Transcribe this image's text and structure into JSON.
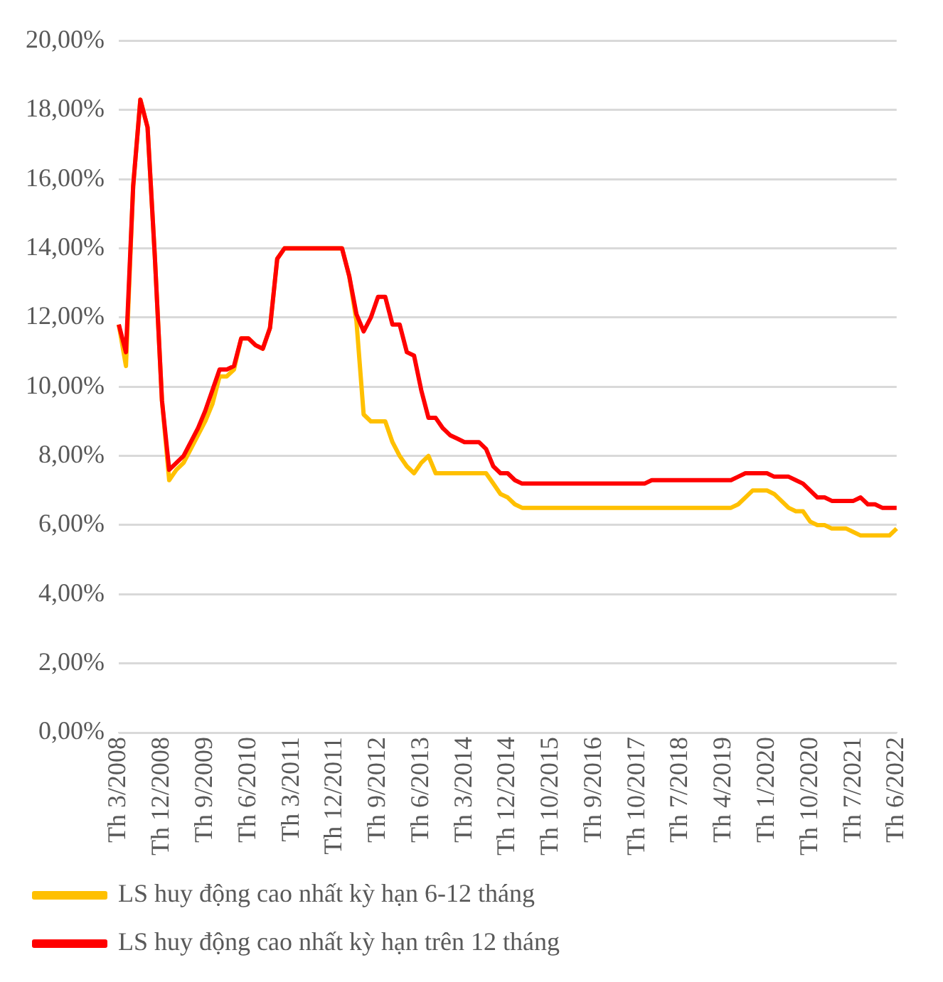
{
  "chart_data": {
    "type": "line",
    "categories": [
      "Th 3/2008",
      null,
      null,
      null,
      null,
      null,
      "Th 12/2008",
      null,
      null,
      null,
      null,
      null,
      "Th 9/2009",
      null,
      null,
      null,
      null,
      null,
      "Th 6/2010",
      null,
      null,
      null,
      null,
      null,
      "Th 3/2011",
      null,
      null,
      null,
      null,
      null,
      "Th 12/2011",
      null,
      null,
      null,
      null,
      null,
      "Th 9/2012",
      null,
      null,
      null,
      null,
      null,
      "Th 6/2013",
      null,
      null,
      null,
      null,
      null,
      "Th 3/2014",
      null,
      null,
      null,
      null,
      null,
      "Th 12/2014",
      null,
      null,
      null,
      null,
      null,
      "Th 10/2015",
      null,
      null,
      null,
      null,
      null,
      "Th 9/2016",
      null,
      null,
      null,
      null,
      null,
      "Th 10/2017",
      null,
      null,
      null,
      null,
      null,
      "Th 7/2018",
      null,
      null,
      null,
      null,
      null,
      "Th 4/2019",
      null,
      null,
      null,
      null,
      null,
      "Th 1/2020",
      null,
      null,
      null,
      null,
      null,
      "Th 10/2020",
      null,
      null,
      null,
      null,
      null,
      "Th 7/2021",
      null,
      null,
      null,
      null,
      null,
      "Th 6/2022"
    ],
    "series": [
      {
        "name": "LS huy động cao nhất kỳ hạn 6-12 tháng",
        "color": "#ffc000",
        "values": [
          11.8,
          10.6,
          15.8,
          18.3,
          17.5,
          13.8,
          9.6,
          7.3,
          7.6,
          7.8,
          8.2,
          8.6,
          9.0,
          9.5,
          10.3,
          10.3,
          10.5,
          11.4,
          11.4,
          11.2,
          11.1,
          11.7,
          13.7,
          14.0,
          14.0,
          14.0,
          14.0,
          14.0,
          14.0,
          14.0,
          14.0,
          14.0,
          13.2,
          11.9,
          9.2,
          9.0,
          9.0,
          9.0,
          8.4,
          8.0,
          7.7,
          7.5,
          7.8,
          8.0,
          7.5,
          7.5,
          7.5,
          7.5,
          7.5,
          7.5,
          7.5,
          7.5,
          7.2,
          6.9,
          6.8,
          6.6,
          6.5,
          6.5,
          6.5,
          6.5,
          6.5,
          6.5,
          6.5,
          6.5,
          6.5,
          6.5,
          6.5,
          6.5,
          6.5,
          6.5,
          6.5,
          6.5,
          6.5,
          6.5,
          6.5,
          6.5,
          6.5,
          6.5,
          6.5,
          6.5,
          6.5,
          6.5,
          6.5,
          6.5,
          6.5,
          6.5,
          6.6,
          6.8,
          7.0,
          7.0,
          7.0,
          6.9,
          6.7,
          6.5,
          6.4,
          6.4,
          6.1,
          6.0,
          6.0,
          5.9,
          5.9,
          5.9,
          5.8,
          5.7,
          5.7,
          5.7,
          5.7,
          5.7,
          5.9
        ]
      },
      {
        "name": "LS huy động cao nhất kỳ hạn trên 12 tháng",
        "color": "#ff0000",
        "values": [
          11.8,
          11.0,
          15.8,
          18.3,
          17.5,
          13.8,
          9.6,
          7.6,
          7.8,
          8.0,
          8.4,
          8.8,
          9.3,
          9.9,
          10.5,
          10.5,
          10.6,
          11.4,
          11.4,
          11.2,
          11.1,
          11.7,
          13.7,
          14.0,
          14.0,
          14.0,
          14.0,
          14.0,
          14.0,
          14.0,
          14.0,
          14.0,
          13.2,
          12.1,
          11.6,
          12.0,
          12.6,
          12.6,
          11.8,
          11.8,
          11.0,
          10.9,
          9.9,
          9.1,
          9.1,
          8.8,
          8.6,
          8.5,
          8.4,
          8.4,
          8.4,
          8.2,
          7.7,
          7.5,
          7.5,
          7.3,
          7.2,
          7.2,
          7.2,
          7.2,
          7.2,
          7.2,
          7.2,
          7.2,
          7.2,
          7.2,
          7.2,
          7.2,
          7.2,
          7.2,
          7.2,
          7.2,
          7.2,
          7.2,
          7.3,
          7.3,
          7.3,
          7.3,
          7.3,
          7.3,
          7.3,
          7.3,
          7.3,
          7.3,
          7.3,
          7.3,
          7.4,
          7.5,
          7.5,
          7.5,
          7.5,
          7.4,
          7.4,
          7.4,
          7.3,
          7.2,
          7.0,
          6.8,
          6.8,
          6.7,
          6.7,
          6.7,
          6.7,
          6.8,
          6.6,
          6.6,
          6.5,
          6.5,
          6.5
        ]
      }
    ],
    "ylim": [
      0,
      20
    ],
    "yticks": [
      {
        "value": 0,
        "label": "0,00%"
      },
      {
        "value": 2,
        "label": "2,00%"
      },
      {
        "value": 4,
        "label": "4,00%"
      },
      {
        "value": 6,
        "label": "6,00%"
      },
      {
        "value": 8,
        "label": "8,00%"
      },
      {
        "value": 10,
        "label": "10,00%"
      },
      {
        "value": 12,
        "label": "12,00%"
      },
      {
        "value": 14,
        "label": "14,00%"
      },
      {
        "value": 16,
        "label": "16,00%"
      },
      {
        "value": 18,
        "label": "18,00%"
      },
      {
        "value": 20,
        "label": "20,00%"
      }
    ],
    "grid": "y",
    "legend": "bottom",
    "marker": "none",
    "line_style": "solid"
  }
}
